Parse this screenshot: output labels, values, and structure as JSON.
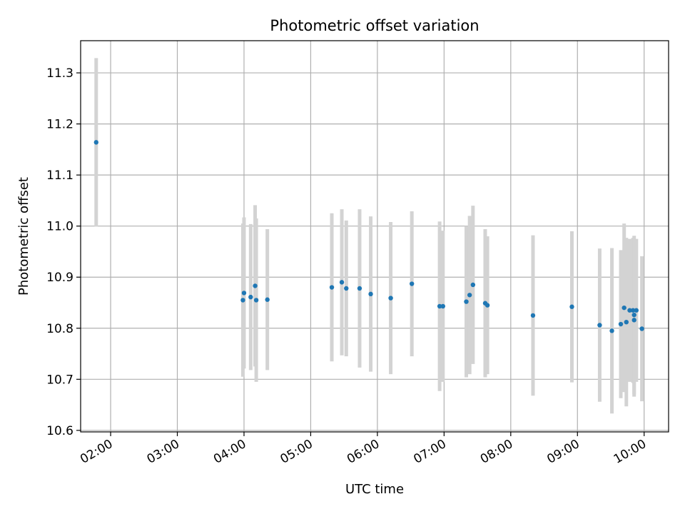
{
  "chart_data": {
    "type": "scatter",
    "title": "Photometric offset variation",
    "xlabel": "UTC time",
    "ylabel": "Photometric offset",
    "grid": true,
    "x_unit": "hours UTC",
    "xlim": [
      "01:33",
      "10:22"
    ],
    "ylim": [
      10.597,
      11.363
    ],
    "x_ticks": [
      "02:00",
      "03:00",
      "04:00",
      "05:00",
      "06:00",
      "07:00",
      "08:00",
      "09:00",
      "10:00"
    ],
    "y_ticks": [
      "10.6",
      "10.7",
      "10.8",
      "10.9",
      "11.0",
      "11.1",
      "11.2",
      "11.3"
    ],
    "colors": {
      "points": "#1f77b4",
      "errorbars": "#d3d3d3",
      "grid": "#b0b0b0"
    },
    "series": [
      {
        "points": [
          {
            "x": "01:47",
            "y": 11.164,
            "err": 0.165
          },
          {
            "x": "03:59",
            "y": 10.855,
            "err": 0.15
          },
          {
            "x": "04:00",
            "y": 10.869,
            "err": 0.148
          },
          {
            "x": "04:06",
            "y": 10.861,
            "err": 0.143
          },
          {
            "x": "04:10",
            "y": 10.883,
            "err": 0.158
          },
          {
            "x": "04:11",
            "y": 10.855,
            "err": 0.16
          },
          {
            "x": "04:21",
            "y": 10.856,
            "err": 0.138
          },
          {
            "x": "05:19",
            "y": 10.88,
            "err": 0.145
          },
          {
            "x": "05:28",
            "y": 10.89,
            "err": 0.143
          },
          {
            "x": "05:32",
            "y": 10.878,
            "err": 0.133
          },
          {
            "x": "05:44",
            "y": 10.878,
            "err": 0.155
          },
          {
            "x": "05:54",
            "y": 10.867,
            "err": 0.152
          },
          {
            "x": "06:12",
            "y": 10.859,
            "err": 0.149
          },
          {
            "x": "06:31",
            "y": 10.887,
            "err": 0.142
          },
          {
            "x": "06:56",
            "y": 10.843,
            "err": 0.166
          },
          {
            "x": "06:59",
            "y": 10.843,
            "err": 0.148
          },
          {
            "x": "07:20",
            "y": 10.852,
            "err": 0.148
          },
          {
            "x": "07:23",
            "y": 10.865,
            "err": 0.155
          },
          {
            "x": "07:26",
            "y": 10.885,
            "err": 0.155
          },
          {
            "x": "07:37",
            "y": 10.849,
            "err": 0.145
          },
          {
            "x": "07:39",
            "y": 10.845,
            "err": 0.135
          },
          {
            "x": "08:20",
            "y": 10.825,
            "err": 0.157
          },
          {
            "x": "08:55",
            "y": 10.842,
            "err": 0.148
          },
          {
            "x": "09:20",
            "y": 10.806,
            "err": 0.15
          },
          {
            "x": "09:31",
            "y": 10.795,
            "err": 0.162
          },
          {
            "x": "09:39",
            "y": 10.808,
            "err": 0.145
          },
          {
            "x": "09:42",
            "y": 10.84,
            "err": 0.165
          },
          {
            "x": "09:44",
            "y": 10.812,
            "err": 0.165
          },
          {
            "x": "09:47",
            "y": 10.835,
            "err": 0.14
          },
          {
            "x": "09:50",
            "y": 10.835,
            "err": 0.142
          },
          {
            "x": "09:51",
            "y": 10.816,
            "err": 0.15
          },
          {
            "x": "09:51",
            "y": 10.826,
            "err": 0.155
          },
          {
            "x": "09:53",
            "y": 10.835,
            "err": 0.14
          },
          {
            "x": "09:58",
            "y": 10.799,
            "err": 0.142
          }
        ]
      }
    ]
  }
}
